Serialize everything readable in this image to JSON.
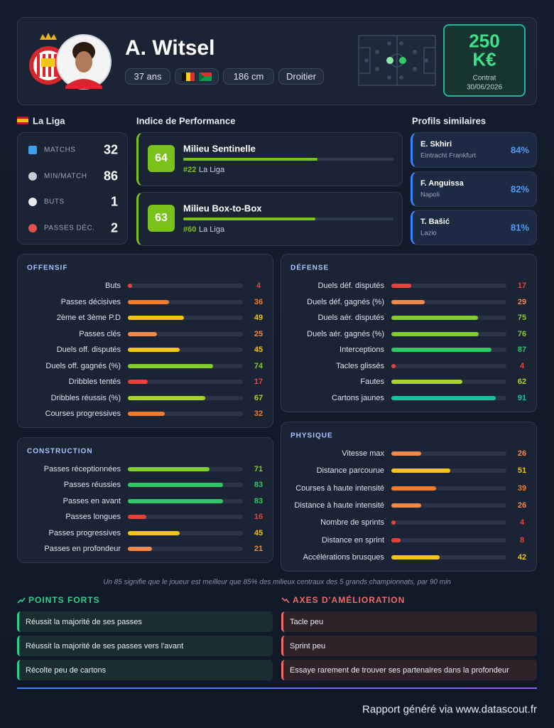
{
  "player": {
    "name": "A. Witsel",
    "age": "37 ans",
    "height": "186 cm",
    "foot": "Droitier"
  },
  "market_value": {
    "amount": "250",
    "unit": "K€",
    "contract_label": "Contrat",
    "contract_date": "30/06/2026"
  },
  "league": "La Liga",
  "season_stats": [
    {
      "label": "MATCHS",
      "value": 32
    },
    {
      "label": "MIN/MATCH",
      "value": 86
    },
    {
      "label": "BUTS",
      "value": 1
    },
    {
      "label": "PASSES DÉC.",
      "value": 2
    }
  ],
  "performance": {
    "title": "Indice de Performance",
    "roles": [
      {
        "score": 64,
        "role": "Milieu Sentinelle",
        "rank": "#22",
        "league": "La Liga"
      },
      {
        "score": 63,
        "role": "Milieu Box-to-Box",
        "rank": "#60",
        "league": "La Liga"
      }
    ]
  },
  "similar": {
    "title": "Profils similaires",
    "players": [
      {
        "name": "E. Skhiri",
        "club": "Eintracht Frankfurt",
        "similarity": "84%"
      },
      {
        "name": "F. Anguissa",
        "club": "Napoli",
        "similarity": "82%"
      },
      {
        "name": "T. Bašić",
        "club": "Lazio",
        "similarity": "81%"
      }
    ]
  },
  "sections": [
    {
      "title": "OFFENSIF",
      "metrics": [
        {
          "label": "Buts",
          "value": 4
        },
        {
          "label": "Passes décisives",
          "value": 36
        },
        {
          "label": "2ème et 3ème P.D",
          "value": 49
        },
        {
          "label": "Passes clés",
          "value": 25
        },
        {
          "label": "Duels off. disputés",
          "value": 45
        },
        {
          "label": "Duels off. gagnés (%)",
          "value": 74
        },
        {
          "label": "Dribbles tentés",
          "value": 17
        },
        {
          "label": "Dribbles réussis (%)",
          "value": 67
        },
        {
          "label": "Courses progressives",
          "value": 32
        }
      ]
    },
    {
      "title": "DÉFENSE",
      "metrics": [
        {
          "label": "Duels déf. disputés",
          "value": 17
        },
        {
          "label": "Duels déf. gagnés (%)",
          "value": 29
        },
        {
          "label": "Duels aér. disputés",
          "value": 75
        },
        {
          "label": "Duels aér. gagnés (%)",
          "value": 76
        },
        {
          "label": "Interceptions",
          "value": 87
        },
        {
          "label": "Tacles glissés",
          "value": 4
        },
        {
          "label": "Fautes",
          "value": 62
        },
        {
          "label": "Cartons jaunes",
          "value": 91
        }
      ]
    },
    {
      "title": "CONSTRUCTION",
      "metrics": [
        {
          "label": "Passes réceptionnées",
          "value": 71
        },
        {
          "label": "Passes réussies",
          "value": 83
        },
        {
          "label": "Passes en avant",
          "value": 83
        },
        {
          "label": "Passes longues",
          "value": 16
        },
        {
          "label": "Passes progressives",
          "value": 45
        },
        {
          "label": "Passes en profondeur",
          "value": 21
        }
      ]
    },
    {
      "title": "PHYSIQUE",
      "metrics": [
        {
          "label": "Vitesse max",
          "value": 26
        },
        {
          "label": "Distance parcourue",
          "value": 51
        },
        {
          "label": "Courses à haute intensité",
          "value": 39
        },
        {
          "label": "Distance à haute intensité",
          "value": 26
        },
        {
          "label": "Nombre de sprints",
          "value": 4
        },
        {
          "label": "Distance en sprint",
          "value": 8
        },
        {
          "label": "Accélérations brusques",
          "value": 42
        }
      ]
    }
  ],
  "footnote": "Un 85 signifie que le joueur est meilleur que 85% des milieux centraux des 5 grands championnats, par 90 min",
  "strengths": {
    "title": "POINTS FORTS",
    "items": [
      "Réussit la majorité de ses passes",
      "Réussit la majorité de ses passes vers l'avant",
      "Récolte peu de cartons"
    ]
  },
  "improvements": {
    "title": "AXES D'AMÉLIORATION",
    "items": [
      "Tacle peu",
      "Sprint peu",
      "Essaye rarement de trouver ses partenaires dans la profondeur"
    ]
  },
  "footer": "Rapport généré via www.datascout.fr"
}
